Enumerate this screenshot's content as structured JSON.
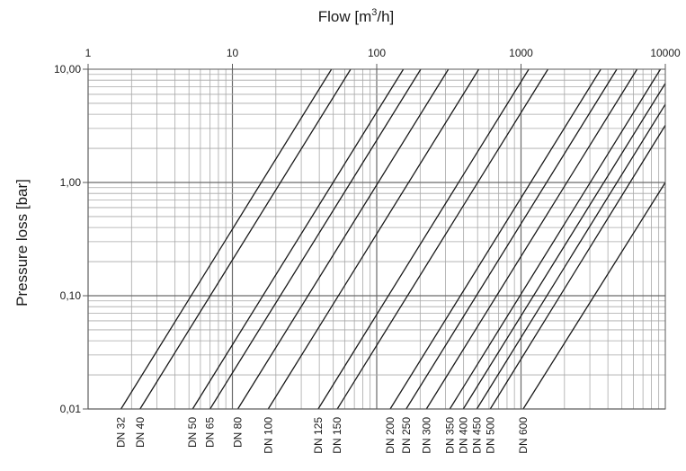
{
  "chart_data": {
    "type": "line",
    "title": "Flow [m³/h]",
    "title_parts": {
      "main": "Flow [m",
      "sup": "3",
      "end": "/h]"
    },
    "xlabel": "Flow [m³/h]",
    "ylabel": "Pressure loss [bar]",
    "x_scale": "log",
    "y_scale": "log",
    "xlim": [
      1,
      10000
    ],
    "ylim": [
      0.01,
      10
    ],
    "x_axis_position": "top",
    "x_ticks": [
      {
        "value": 1,
        "label": "1"
      },
      {
        "value": 10,
        "label": "10"
      },
      {
        "value": 100,
        "label": "100"
      },
      {
        "value": 1000,
        "label": "1000"
      },
      {
        "value": 10000,
        "label": "10000"
      }
    ],
    "y_ticks": [
      {
        "value": 10,
        "label": "10,00"
      },
      {
        "value": 1,
        "label": "1,00"
      },
      {
        "value": 0.1,
        "label": "0,10"
      },
      {
        "value": 0.01,
        "label": "0,01"
      }
    ],
    "grid": true,
    "line_color": "#1a1a1a",
    "grid_color": "#a8a8a8",
    "series": [
      {
        "name": "DN 32",
        "x": [
          1.69,
          48.6
        ],
        "y": [
          0.01,
          10
        ]
      },
      {
        "name": "DN 40",
        "x": [
          2.29,
          66.0
        ],
        "y": [
          0.01,
          10
        ]
      },
      {
        "name": "DN 50",
        "x": [
          5.3,
          153
        ],
        "y": [
          0.01,
          10
        ]
      },
      {
        "name": "DN 65",
        "x": [
          7.0,
          202
        ],
        "y": [
          0.01,
          10
        ]
      },
      {
        "name": "DN 80",
        "x": [
          10.9,
          314
        ],
        "y": [
          0.01,
          10
        ]
      },
      {
        "name": "DN 100",
        "x": [
          17.7,
          510
        ],
        "y": [
          0.01,
          10
        ]
      },
      {
        "name": "DN 125",
        "x": [
          39.3,
          1132
        ],
        "y": [
          0.01,
          10
        ]
      },
      {
        "name": "DN 150",
        "x": [
          53.3,
          1537
        ],
        "y": [
          0.01,
          10
        ]
      },
      {
        "name": "DN 200",
        "x": [
          124,
          3575
        ],
        "y": [
          0.01,
          10
        ]
      },
      {
        "name": "DN 250",
        "x": [
          160,
          4612
        ],
        "y": [
          0.01,
          10
        ]
      },
      {
        "name": "DN 300",
        "x": [
          221,
          6370
        ],
        "y": [
          0.01,
          10
        ]
      },
      {
        "name": "DN 350",
        "x": [
          321,
          9253
        ],
        "y": [
          0.01,
          10
        ]
      },
      {
        "name": "DN 400",
        "x": [
          398,
          10000
        ],
        "y": [
          0.01,
          7.5
        ]
      },
      {
        "name": "DN 450",
        "x": [
          494,
          10000
        ],
        "y": [
          0.01,
          4.9
        ]
      },
      {
        "name": "DN 500",
        "x": [
          612,
          10000
        ],
        "y": [
          0.01,
          3.2
        ]
      },
      {
        "name": "DN 600",
        "x": [
          1035,
          10000
        ],
        "y": [
          0.01,
          1.0
        ]
      }
    ]
  }
}
